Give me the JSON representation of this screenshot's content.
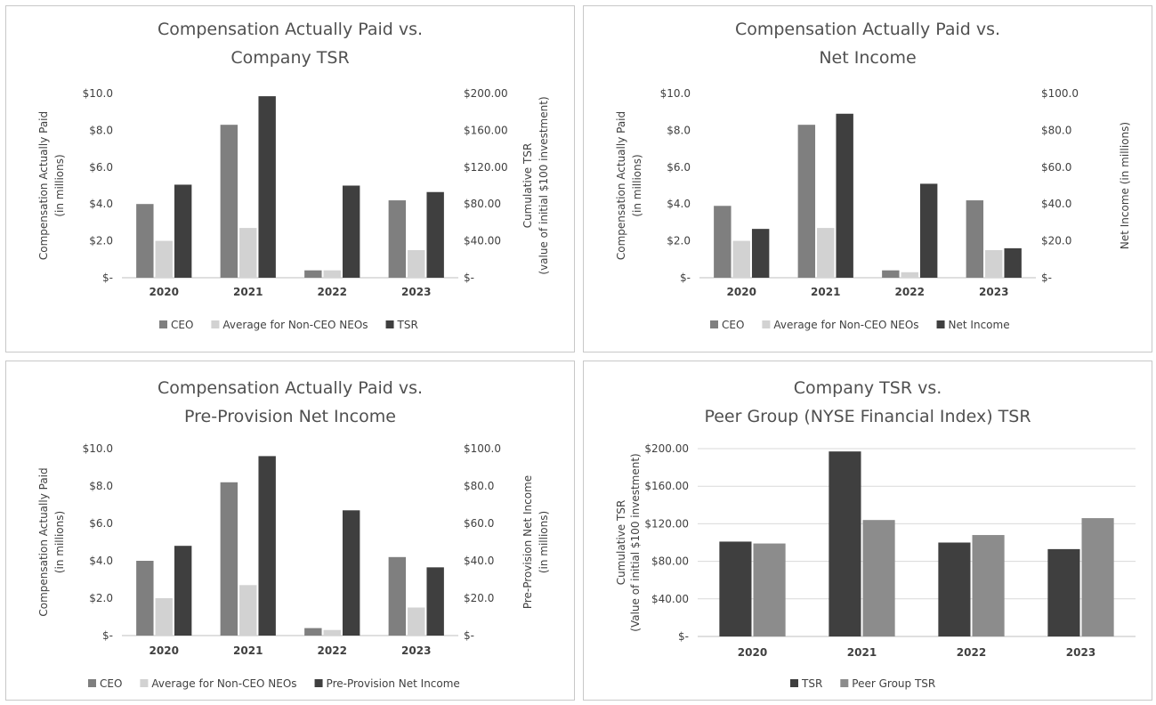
{
  "colors": {
    "ceo": "#7f7f7f",
    "neo": "#d2d2d2",
    "dark": "#3f3f3f",
    "peer": "#8c8c8c"
  },
  "chart_data": [
    {
      "id": "cap-vs-tsr",
      "type": "bar",
      "title_lines": [
        "Compensation Actually Paid vs.",
        "Company TSR"
      ],
      "categories": [
        "2020",
        "2021",
        "2022",
        "2023"
      ],
      "ylabel_lines": [
        "Compensation Actually Paid",
        "(in millions)"
      ],
      "y2label_lines": [
        "Cumulative TSR",
        "(value of initial $100 investment)"
      ],
      "ylim": [
        0,
        10
      ],
      "y2lim": [
        0,
        200
      ],
      "yticks": [
        "$-",
        "$2.0",
        "$4.0",
        "$6.0",
        "$8.0",
        "$10.0"
      ],
      "y2ticks": [
        "$-",
        "$40.00",
        "$80.00",
        "$120.00",
        "$160.00",
        "$200.00"
      ],
      "grid": false,
      "legend_position": "bottom",
      "series": [
        {
          "name": "CEO",
          "axis": "left",
          "color": "ceo",
          "values": [
            4.0,
            8.3,
            0.4,
            4.2
          ]
        },
        {
          "name": "Average for Non-CEO NEOs",
          "axis": "left",
          "color": "neo",
          "values": [
            2.0,
            2.7,
            0.4,
            1.5
          ]
        },
        {
          "name": "TSR",
          "axis": "right",
          "color": "dark",
          "values": [
            101,
            197,
            100,
            93
          ]
        }
      ]
    },
    {
      "id": "cap-vs-net-income",
      "type": "bar",
      "title_lines": [
        "Compensation Actually Paid vs.",
        "Net Income"
      ],
      "categories": [
        "2020",
        "2021",
        "2022",
        "2023"
      ],
      "ylabel_lines": [
        "Compensation Actually Paid",
        "(in millions)"
      ],
      "y2label_lines": [
        "Net Income (in millions)"
      ],
      "ylim": [
        0,
        10
      ],
      "y2lim": [
        0,
        100
      ],
      "yticks": [
        "$-",
        "$2.0",
        "$4.0",
        "$6.0",
        "$8.0",
        "$10.0"
      ],
      "y2ticks": [
        "$-",
        "$20.0",
        "$40.0",
        "$60.0",
        "$80.0",
        "$100.0"
      ],
      "grid": false,
      "legend_position": "bottom",
      "series": [
        {
          "name": "CEO",
          "axis": "left",
          "color": "ceo",
          "values": [
            3.9,
            8.3,
            0.4,
            4.2
          ]
        },
        {
          "name": "Average for Non-CEO NEOs",
          "axis": "left",
          "color": "neo",
          "values": [
            2.0,
            2.7,
            0.3,
            1.5
          ]
        },
        {
          "name": "Net Income",
          "axis": "right",
          "color": "dark",
          "values": [
            26.5,
            89,
            51,
            16
          ]
        }
      ]
    },
    {
      "id": "cap-vs-ppni",
      "type": "bar",
      "title_lines": [
        "Compensation Actually Paid vs.",
        "Pre-Provision Net Income"
      ],
      "categories": [
        "2020",
        "2021",
        "2022",
        "2023"
      ],
      "ylabel_lines": [
        "Compensation Actually Paid",
        "(in millions)"
      ],
      "y2label_lines": [
        "Pre-Provision Net Income",
        "(in millions)"
      ],
      "ylim": [
        0,
        10
      ],
      "y2lim": [
        0,
        100
      ],
      "yticks": [
        "$-",
        "$2.0",
        "$4.0",
        "$6.0",
        "$8.0",
        "$10.0"
      ],
      "y2ticks": [
        "$-",
        "$20.0",
        "$40.0",
        "$60.0",
        "$80.0",
        "$100.0"
      ],
      "grid": false,
      "legend_position": "bottom",
      "series": [
        {
          "name": "CEO",
          "axis": "left",
          "color": "ceo",
          "values": [
            4.0,
            8.2,
            0.4,
            4.2
          ]
        },
        {
          "name": "Average for Non-CEO NEOs",
          "axis": "left",
          "color": "neo",
          "values": [
            2.0,
            2.7,
            0.3,
            1.5
          ]
        },
        {
          "name": "Pre-Provision Net Income",
          "axis": "right",
          "color": "dark",
          "values": [
            48,
            96,
            67,
            36.5
          ]
        }
      ]
    },
    {
      "id": "tsr-vs-peer",
      "type": "bar",
      "title_lines": [
        "Company TSR vs.",
        "Peer Group (NYSE Financial Index) TSR"
      ],
      "categories": [
        "2020",
        "2021",
        "2022",
        "2023"
      ],
      "ylabel_lines": [
        "Cumulative TSR",
        "(Value of initial $100 investment)"
      ],
      "ylim": [
        0,
        200
      ],
      "yticks": [
        "$-",
        "$40.00",
        "$80.00",
        "$120.00",
        "$160.00",
        "$200.00"
      ],
      "grid": true,
      "legend_position": "bottom",
      "series": [
        {
          "name": "TSR",
          "axis": "left",
          "color": "dark",
          "values": [
            101,
            197,
            100,
            93
          ]
        },
        {
          "name": "Peer Group TSR",
          "axis": "left",
          "color": "peer",
          "values": [
            99,
            124,
            108,
            126
          ]
        }
      ]
    }
  ]
}
